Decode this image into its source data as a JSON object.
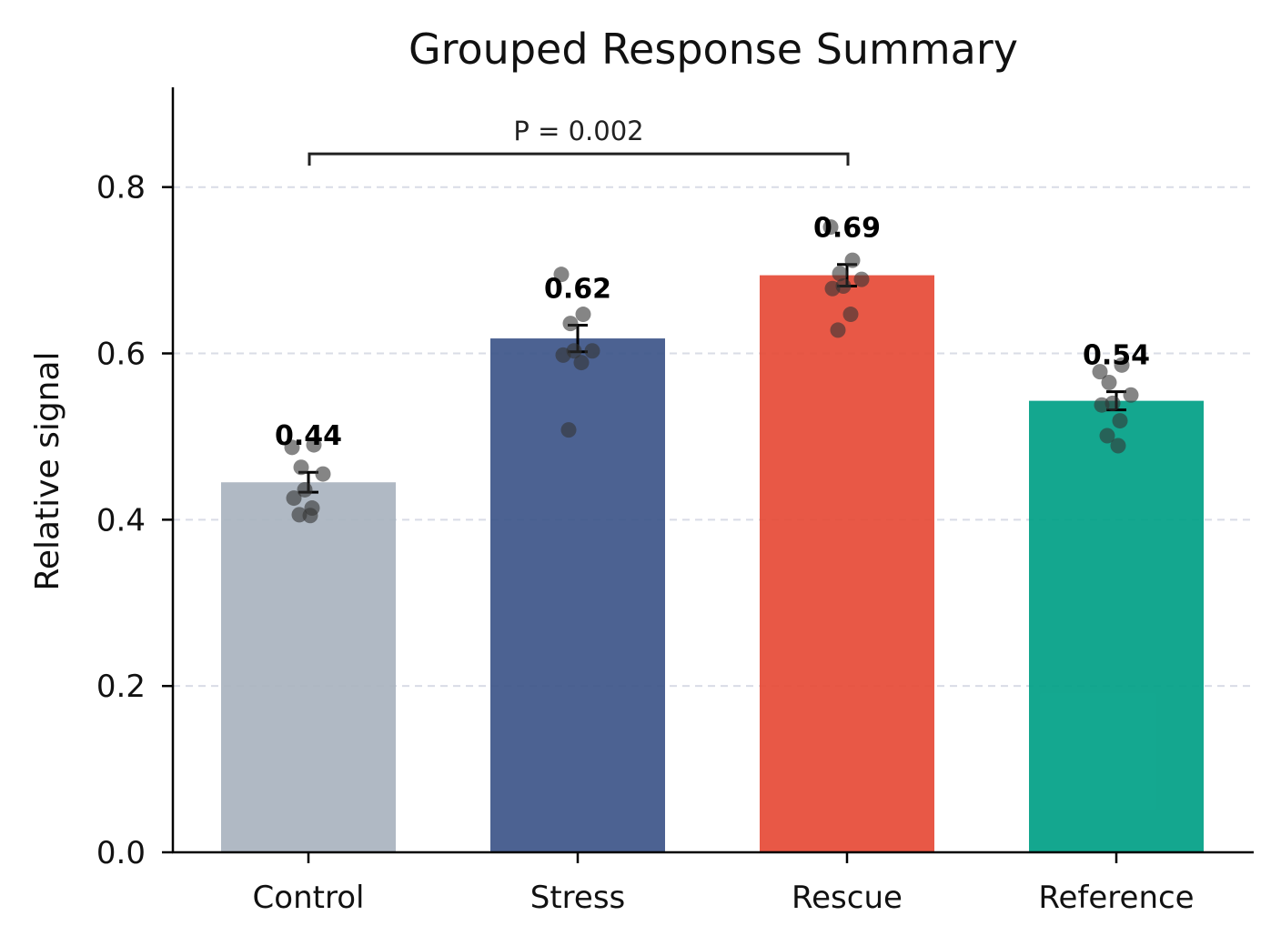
{
  "chart_data": {
    "type": "bar",
    "title": "Grouped Response Summary",
    "xlabel": "",
    "ylabel": "Relative signal",
    "ylim": [
      0,
      0.92
    ],
    "yticks": [
      0.0,
      0.2,
      0.4,
      0.6,
      0.8
    ],
    "ytick_labels": [
      "0.0",
      "0.2",
      "0.4",
      "0.6",
      "0.8"
    ],
    "grid": "horizontal dashed",
    "categories": [
      "Control",
      "Stress",
      "Rescue",
      "Reference"
    ],
    "values": [
      0.445,
      0.618,
      0.694,
      0.543
    ],
    "value_labels": [
      "0.44",
      "0.62",
      "0.69",
      "0.54"
    ],
    "errors": [
      0.012,
      0.016,
      0.013,
      0.011
    ],
    "colors": [
      "#a9b3bf",
      "#3d5589",
      "#e64a36",
      "#00a086"
    ],
    "points": [
      [
        0.487,
        0.49,
        0.463,
        0.455,
        0.436,
        0.426,
        0.414,
        0.406,
        0.405
      ],
      [
        0.695,
        0.647,
        0.636,
        0.603,
        0.603,
        0.598,
        0.589,
        0.508
      ],
      [
        0.752,
        0.712,
        0.696,
        0.689,
        0.681,
        0.678,
        0.647,
        0.628
      ],
      [
        0.578,
        0.586,
        0.565,
        0.55,
        0.54,
        0.538,
        0.519,
        0.501,
        0.489
      ]
    ],
    "significance": {
      "from": "Control",
      "to": "Rescue",
      "label": "P = 0.002",
      "y": 0.84
    }
  }
}
